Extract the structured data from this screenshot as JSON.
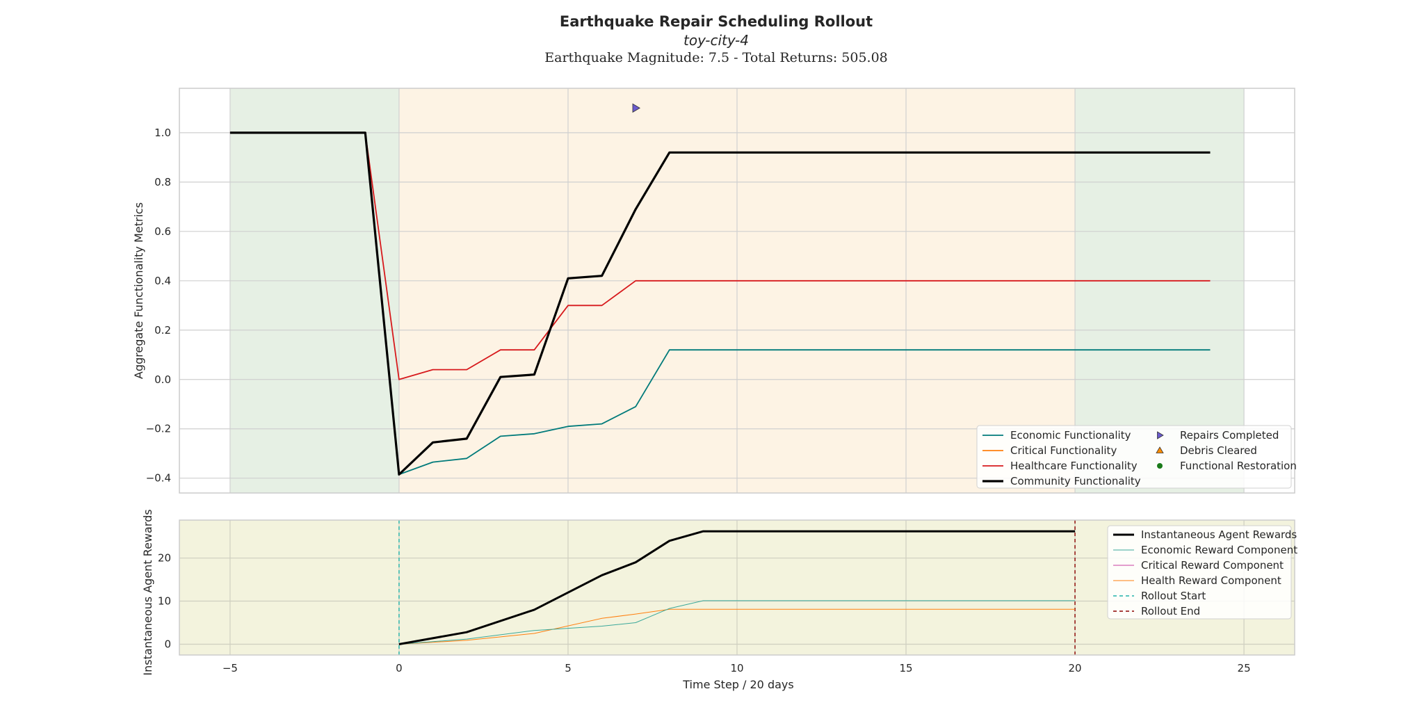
{
  "chart_data": [
    {
      "type": "line",
      "title": "Earthquake Repair Scheduling Rollout",
      "subtitle": "toy-city-4",
      "info": "Earthquake Magnitude: 7.5 - Total Returns: 505.08",
      "ylabel": "Aggregate Functionality Metrics",
      "xlim": [
        -6.5,
        26.5
      ],
      "ylim": [
        -0.46,
        1.18
      ],
      "xticks": [
        -5,
        0,
        5,
        10,
        15,
        20,
        25
      ],
      "yticks": [
        -0.4,
        -0.2,
        0.0,
        0.2,
        0.4,
        0.6,
        0.8,
        1.0
      ],
      "ytick_labels": [
        "−0.4",
        "−0.2",
        "0.0",
        "0.2",
        "0.4",
        "0.6",
        "0.8",
        "1.0"
      ],
      "grid": true,
      "legend_position": "lower-right",
      "phases": [
        {
          "from": -5,
          "to": 0,
          "color": "#e6f0e4"
        },
        {
          "from": 0,
          "to": 20,
          "color": "#fdf3e4"
        },
        {
          "from": 20,
          "to": 25,
          "color": "#e6f0e4"
        }
      ],
      "series": [
        {
          "name": "Economic Functionality",
          "color": "#007a7a",
          "width": 1.8,
          "x": [
            -5,
            -1,
            0,
            1,
            2,
            3,
            4,
            5,
            6,
            7,
            8,
            24
          ],
          "y": [
            1.0,
            1.0,
            -0.385,
            -0.335,
            -0.32,
            -0.23,
            -0.22,
            -0.19,
            -0.18,
            -0.11,
            0.12,
            0.12
          ]
        },
        {
          "name": "Critical Functionality",
          "color": "#ff7f0e",
          "width": 1.8,
          "x": [],
          "y": []
        },
        {
          "name": "Healthcare Functionality",
          "color": "#d7191c",
          "width": 1.8,
          "x": [
            -5,
            -1,
            0,
            1,
            2,
            3,
            4,
            5,
            6,
            7,
            24
          ],
          "y": [
            1.0,
            1.0,
            0.0,
            0.04,
            0.04,
            0.12,
            0.12,
            0.3,
            0.3,
            0.4,
            0.4
          ]
        },
        {
          "name": "Community Functionality",
          "color": "#000000",
          "width": 3.2,
          "x": [
            -5,
            -1,
            0,
            1,
            2,
            3,
            4,
            5,
            6,
            7,
            8,
            24
          ],
          "y": [
            1.0,
            1.0,
            -0.385,
            -0.255,
            -0.24,
            0.01,
            0.02,
            0.41,
            0.42,
            0.69,
            0.92,
            0.92
          ]
        }
      ],
      "markers": [
        {
          "name": "Repairs Completed",
          "shape": "triangle-right",
          "color": "#6a5acd",
          "points": [
            {
              "x": 7,
              "y": 1.1
            }
          ]
        },
        {
          "name": "Debris Cleared",
          "shape": "triangle-up",
          "color": "#ff8c00",
          "points": []
        },
        {
          "name": "Functional Restoration",
          "shape": "circle",
          "color": "#1a7a1a",
          "points": []
        }
      ]
    },
    {
      "type": "line",
      "xlabel": "Time Step / 20 days",
      "ylabel": "Instantaneous Agent Rewards",
      "xlim": [
        -6.5,
        26.5
      ],
      "ylim": [
        -2.5,
        28.8
      ],
      "xticks": [
        -5,
        0,
        5,
        10,
        15,
        20,
        25
      ],
      "xtick_labels": [
        "−5",
        "0",
        "5",
        "10",
        "15",
        "20",
        "25"
      ],
      "yticks": [
        0,
        10,
        20
      ],
      "grid": true,
      "legend_position": "upper-right",
      "background": "#f3f3dd",
      "series": [
        {
          "name": "Instantaneous Agent Rewards",
          "color": "#000000",
          "width": 3.0,
          "x": [
            0,
            2,
            4,
            6,
            7,
            8,
            9,
            20
          ],
          "y": [
            0,
            2.8,
            8,
            16,
            19,
            24,
            26.2,
            26.2
          ]
        },
        {
          "name": "Economic Reward Component",
          "color": "#3aa89a",
          "width": 1.0,
          "x": [
            0,
            2,
            4,
            6,
            7,
            8,
            9,
            20
          ],
          "y": [
            0,
            1.2,
            3.2,
            4.2,
            5,
            8.3,
            10.1,
            10.1
          ]
        },
        {
          "name": "Critical Reward Component",
          "color": "#c83ca0",
          "width": 1.0,
          "x": [],
          "y": []
        },
        {
          "name": "Health Reward Component",
          "color": "#ff7f0e",
          "width": 1.0,
          "x": [
            0,
            2,
            4,
            6,
            7,
            8,
            20
          ],
          "y": [
            0,
            0.9,
            2.5,
            6,
            7,
            8.1,
            8.1
          ]
        }
      ],
      "vlines": [
        {
          "name": "Rollout Start",
          "x": 0,
          "color": "#20b2aa"
        },
        {
          "name": "Rollout End",
          "x": 20,
          "color": "#8b0000"
        }
      ]
    }
  ]
}
